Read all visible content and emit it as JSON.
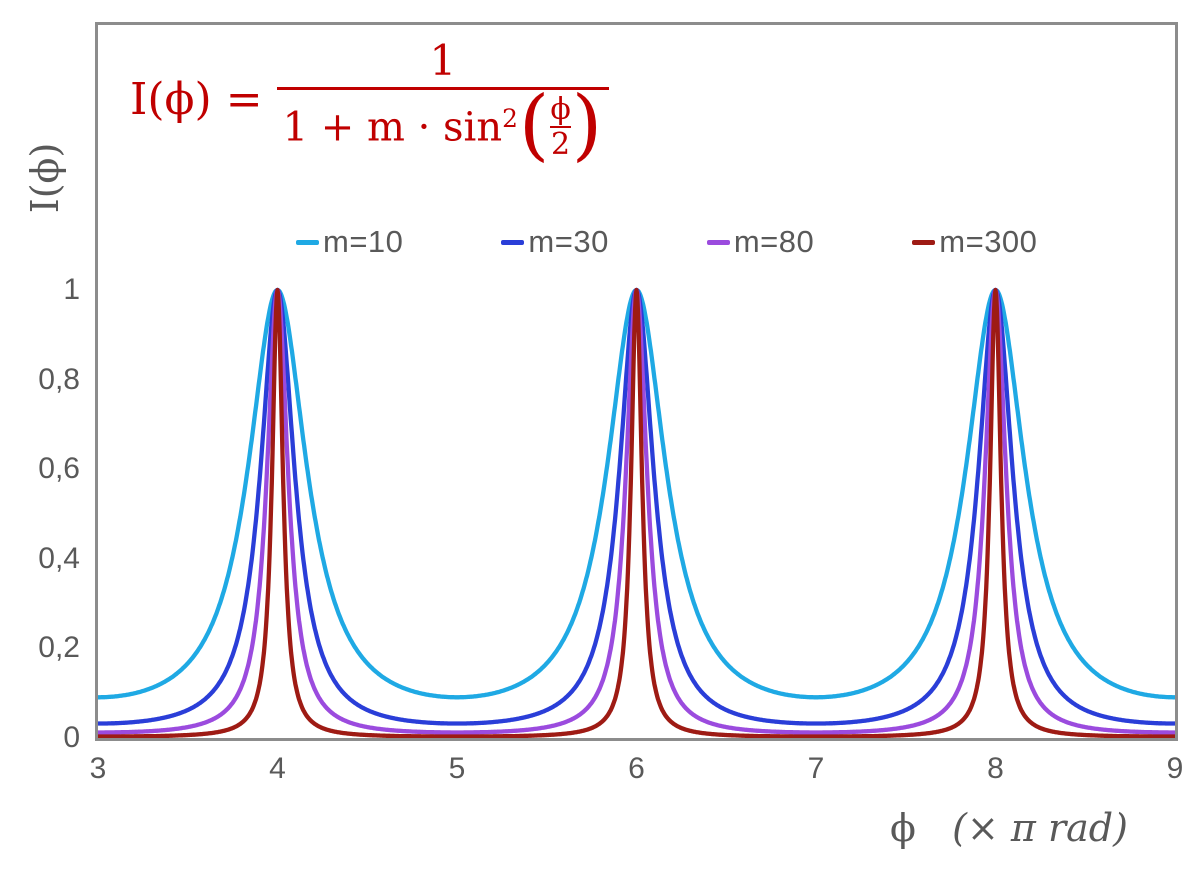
{
  "chart_data": {
    "type": "line",
    "function": "I(phi) = 1 / (1 + m * sin^2(phi/2)), x axis in units of pi rad",
    "formula": {
      "lhs": "I(ϕ) =",
      "numerator": "1",
      "denom_prefix": "1 + m · sin",
      "denom_sup": "2",
      "inner_numerator": "ϕ",
      "inner_denominator": "2",
      "paren_open": "(",
      "paren_close": ")",
      "color": "#c00000"
    },
    "xlabel_phi": "ϕ",
    "xlabel_rest": "(× π rad)",
    "ylabel": "I(ϕ)",
    "xlim": [
      3,
      9
    ],
    "ylim": [
      0,
      1.6
    ],
    "x_ticks": [
      3,
      4,
      5,
      6,
      7,
      8,
      9
    ],
    "y_ticks": [
      {
        "value": 0,
        "label": "0"
      },
      {
        "value": 0.2,
        "label": "0,2"
      },
      {
        "value": 0.4,
        "label": "0,4"
      },
      {
        "value": 0.6,
        "label": "0,6"
      },
      {
        "value": 0.8,
        "label": "0,8"
      },
      {
        "value": 1,
        "label": "1"
      }
    ],
    "grid": false,
    "legend_position": "top-center",
    "peaks_x": [
      4,
      6,
      8
    ],
    "peak_value": 1,
    "series": [
      {
        "name": "m=10",
        "m": 10,
        "color": "#1fa9e4",
        "min_value": 0.0909
      },
      {
        "name": "m=30",
        "m": 30,
        "color": "#2a3ed8",
        "min_value": 0.0323
      },
      {
        "name": "m=80",
        "m": 80,
        "color": "#9b4bde",
        "min_value": 0.0123
      },
      {
        "name": "m=300",
        "m": 300,
        "color": "#9e1b14",
        "min_value": 0.0033
      }
    ],
    "axis_color": "#8c8c8c",
    "tick_text_color": "#595959"
  }
}
